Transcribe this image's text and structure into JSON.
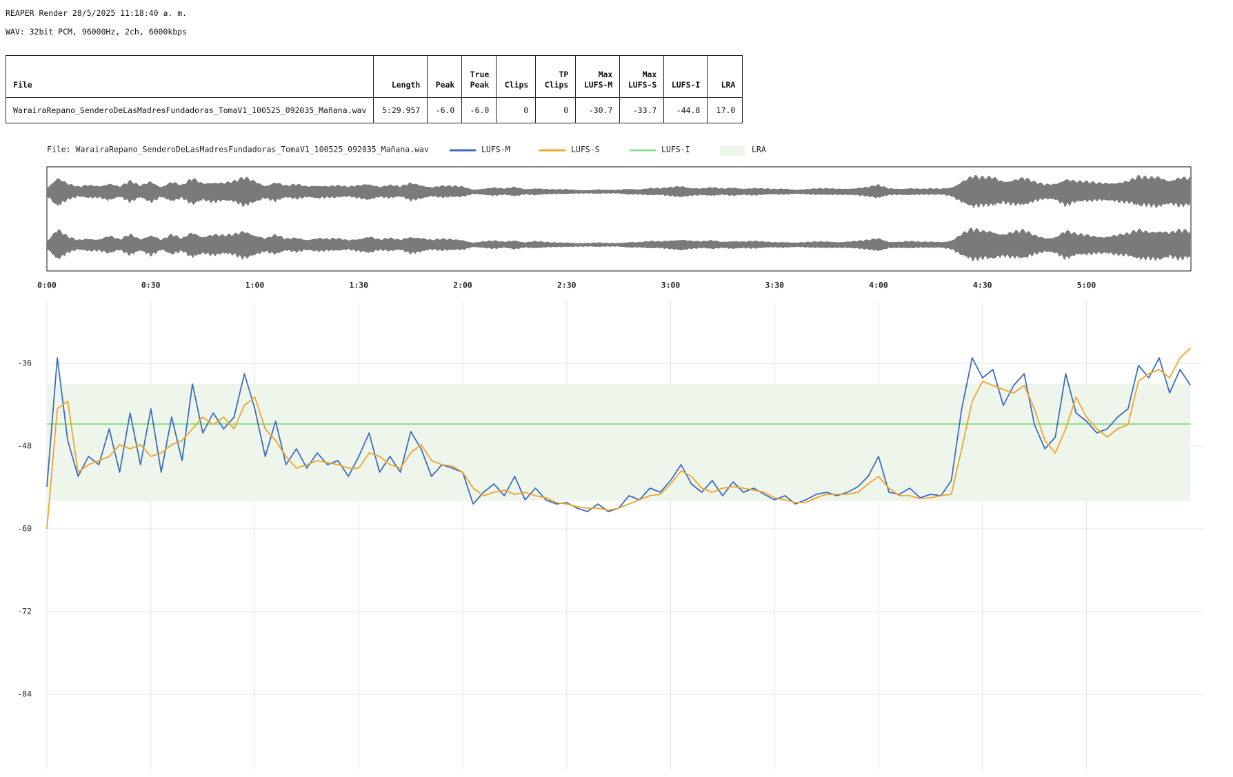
{
  "header": {
    "title": "REAPER Render 28/5/2025 11:18:40 a. m.",
    "format": "WAV: 32bit PCM, 96000Hz, 2ch, 6000kbps"
  },
  "table": {
    "columns": [
      "File",
      "Length",
      "Peak",
      "True Peak",
      "Clips",
      "TP Clips",
      "Max LUFS-M",
      "Max LUFS-S",
      "LUFS-I",
      "LRA"
    ],
    "rows": [
      [
        "WarairaRepano_SenderoDeLasMadresFundadoras_TomaV1_100525_092035_Mañana.wav",
        "5:29.957",
        "-6.0",
        "-6.0",
        "0",
        "0",
        "-30.7",
        "-33.7",
        "-44.8",
        "17.0"
      ]
    ]
  },
  "chart_data": {
    "type": "line",
    "legend_title": "File: WarairaRepano_SenderoDeLasMadresFundadoras_TomaV1_100525_092035_Mañana.wav",
    "x": [
      0,
      3,
      6,
      9,
      12,
      15,
      18,
      21,
      24,
      27,
      30,
      33,
      36,
      39,
      42,
      45,
      48,
      51,
      54,
      57,
      60,
      63,
      66,
      69,
      72,
      75,
      78,
      81,
      84,
      87,
      90,
      93,
      96,
      99,
      102,
      105,
      108,
      111,
      114,
      117,
      120,
      123,
      126,
      129,
      132,
      135,
      138,
      141,
      144,
      147,
      150,
      153,
      156,
      159,
      162,
      165,
      168,
      171,
      174,
      177,
      180,
      183,
      186,
      189,
      192,
      195,
      198,
      201,
      204,
      207,
      210,
      213,
      216,
      219,
      222,
      225,
      228,
      231,
      234,
      237,
      240,
      243,
      246,
      249,
      252,
      255,
      258,
      261,
      264,
      267,
      270,
      273,
      276,
      279,
      282,
      285,
      288,
      291,
      294,
      297,
      300,
      303,
      306,
      309,
      312,
      315,
      318,
      321,
      324,
      327,
      330
    ],
    "series": [
      {
        "name": "LUFS-M",
        "color": "#3c6bc4",
        "values": [
          -53.9,
          -35.2,
          -47.2,
          -52.4,
          -49.5,
          -50.7,
          -45.5,
          -51.8,
          -43.2,
          -50.7,
          -42.6,
          -51.8,
          -43.8,
          -50.1,
          -39,
          -46.1,
          -43.2,
          -45.5,
          -43.8,
          -37.5,
          -42.6,
          -49.5,
          -44.4,
          -50.7,
          -48.4,
          -51.2,
          -49,
          -50.7,
          -50.1,
          -52.4,
          -49.5,
          -46.1,
          -51.8,
          -49.5,
          -51.8,
          -45.9,
          -48.4,
          -52.4,
          -50.7,
          -51.2,
          -51.8,
          -56.4,
          -54.7,
          -53.5,
          -55.2,
          -52.4,
          -55.8,
          -54.1,
          -55.8,
          -56.4,
          -56.2,
          -57,
          -57.5,
          -56.4,
          -57.5,
          -57,
          -55.2,
          -55.8,
          -54.1,
          -54.7,
          -53,
          -50.7,
          -53.5,
          -54.7,
          -53,
          -55.2,
          -53.2,
          -54.7,
          -54.1,
          -55,
          -55.8,
          -55.2,
          -56.4,
          -55.8,
          -55,
          -54.7,
          -55.2,
          -54.7,
          -53.9,
          -52.4,
          -49.5,
          -54.7,
          -55,
          -54.1,
          -55.5,
          -55,
          -55.2,
          -53,
          -42.6,
          -35.2,
          -38.1,
          -36.9,
          -42.1,
          -39.2,
          -37.5,
          -44.9,
          -48.4,
          -46.7,
          -37.5,
          -43.2,
          -44.4,
          -46.1,
          -45.5,
          -43.8,
          -42.6,
          -36.3,
          -38.1,
          -35.2,
          -40.3,
          -36.9,
          -39.2
        ]
      },
      {
        "name": "LUFS-S",
        "color": "#f0a428",
        "values": [
          -60,
          -42.6,
          -41.5,
          -51.8,
          -50.7,
          -50.1,
          -49.5,
          -47.8,
          -48.4,
          -47.8,
          -49.5,
          -49,
          -47.8,
          -47.2,
          -45.5,
          -43.8,
          -44.9,
          -43.8,
          -45.5,
          -42.1,
          -40.9,
          -45.5,
          -47.2,
          -49.5,
          -51.2,
          -50.7,
          -50.1,
          -50.4,
          -50.7,
          -51.2,
          -51.2,
          -49,
          -49.5,
          -50.7,
          -51.2,
          -49,
          -47.8,
          -50.1,
          -50.7,
          -50.9,
          -51.8,
          -54.1,
          -55.2,
          -54.7,
          -54.4,
          -55,
          -54.7,
          -55.2,
          -55.5,
          -56.2,
          -56.4,
          -56.8,
          -57,
          -57,
          -57.3,
          -57,
          -56.4,
          -55.8,
          -55.2,
          -55,
          -53.5,
          -51.6,
          -52.4,
          -54.1,
          -54.7,
          -54.1,
          -53.9,
          -54.1,
          -54.4,
          -54.7,
          -55.5,
          -55.8,
          -56.2,
          -56.2,
          -55.5,
          -55,
          -55,
          -55,
          -54.7,
          -53.5,
          -52.4,
          -54.1,
          -55.2,
          -55.2,
          -55.6,
          -55.5,
          -55.2,
          -55,
          -48.4,
          -41.5,
          -38.6,
          -39.2,
          -39.8,
          -40.3,
          -39.2,
          -42.6,
          -47.2,
          -49,
          -45.5,
          -40.9,
          -43.8,
          -45.5,
          -46.7,
          -45.5,
          -44.9,
          -38.6,
          -37.5,
          -36.9,
          -38.1,
          -35.2,
          -33.8
        ]
      }
    ],
    "reference_lines": [
      {
        "name": "LUFS-I",
        "color": "#8fdc8f",
        "value": -44.8
      }
    ],
    "bands": [
      {
        "name": "LRA",
        "color": "#eef6ec",
        "range": [
          -56,
          -39
        ]
      }
    ],
    "xlim": [
      0,
      334
    ],
    "xticks": [
      {
        "value": 0,
        "label": "0:00"
      },
      {
        "value": 30,
        "label": "0:30"
      },
      {
        "value": 60,
        "label": "1:00"
      },
      {
        "value": 90,
        "label": "1:30"
      },
      {
        "value": 120,
        "label": "2:00"
      },
      {
        "value": 150,
        "label": "2:30"
      },
      {
        "value": 180,
        "label": "3:00"
      },
      {
        "value": 210,
        "label": "3:30"
      },
      {
        "value": 240,
        "label": "4:00"
      },
      {
        "value": 270,
        "label": "4:30"
      },
      {
        "value": 300,
        "label": "5:00"
      }
    ],
    "ylim": [
      -95,
      -27
    ],
    "yticks": [
      -36,
      -48,
      -60,
      -72,
      -84
    ],
    "grid": true
  }
}
